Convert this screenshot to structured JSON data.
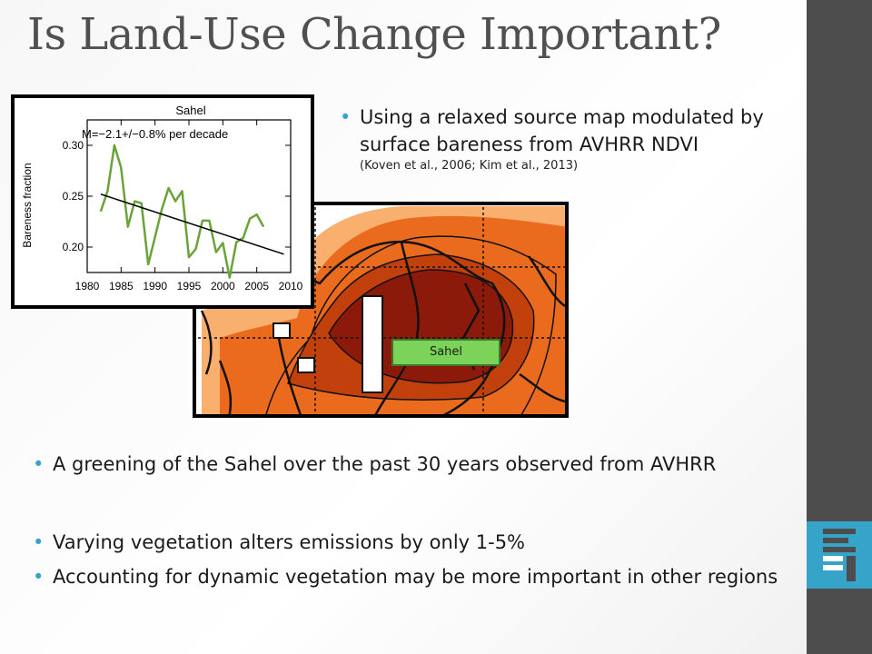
{
  "slide": {
    "title": "Is Land-Use Change Important?",
    "bullet_top": {
      "text": "Using a relaxed source map modulated by surface bareness from AVHRR NDVI",
      "citation": "(Koven et al., 2006; Kim et al., 2013)"
    },
    "bullets_bottom": [
      "A greening of the Sahel over the past 30 years observed from AVHRR",
      "Varying vegetation alters emissions by only 1-5%",
      "Accounting for dynamic vegetation may be more important in other regions"
    ],
    "map_label": "Sahel"
  },
  "colors": {
    "accent": "#37a3c9",
    "sidebar": "#4d4d4d",
    "series_line": "#6aa33a",
    "map_dark": "#8b1a0a",
    "map_mid": "#c2400c",
    "map_orange": "#ea6a1e",
    "map_light": "#f9b06e"
  },
  "chart_data": {
    "type": "line",
    "title": "Sahel",
    "annotation": "M=−2.1+/−0.8% per decade",
    "xlabel": "",
    "ylabel": "Bareness fraction",
    "xlim": [
      1980,
      2010
    ],
    "ylim": [
      0.175,
      0.325
    ],
    "x_ticks": [
      1980,
      1985,
      1990,
      1995,
      2000,
      2005,
      2010
    ],
    "y_ticks": [
      0.2,
      0.25,
      0.3
    ],
    "x_tick_labels": [
      "1980",
      "1985",
      "1990",
      "1995",
      "2000",
      "2005",
      "2010"
    ],
    "y_tick_labels": [
      "0.20",
      "0.25",
      "0.30"
    ],
    "series": [
      {
        "x": [
          1982,
          1983,
          1984,
          1985,
          1986,
          1987,
          1988,
          1989,
          1990,
          1991,
          1992,
          1993,
          1994,
          1995,
          1996,
          1997,
          1998,
          1999,
          2000,
          2001,
          2002,
          2003,
          2004,
          2005,
          2006
        ],
        "y": [
          0.235,
          0.255,
          0.3,
          0.278,
          0.22,
          0.245,
          0.243,
          0.183,
          0.21,
          0.237,
          0.258,
          0.245,
          0.255,
          0.19,
          0.198,
          0.226,
          0.226,
          0.195,
          0.204,
          0.17,
          0.205,
          0.209,
          0.228,
          0.232,
          0.22
        ]
      }
    ],
    "trend": {
      "x": [
        1982,
        2009
      ],
      "y": [
        0.252,
        0.193
      ]
    }
  }
}
